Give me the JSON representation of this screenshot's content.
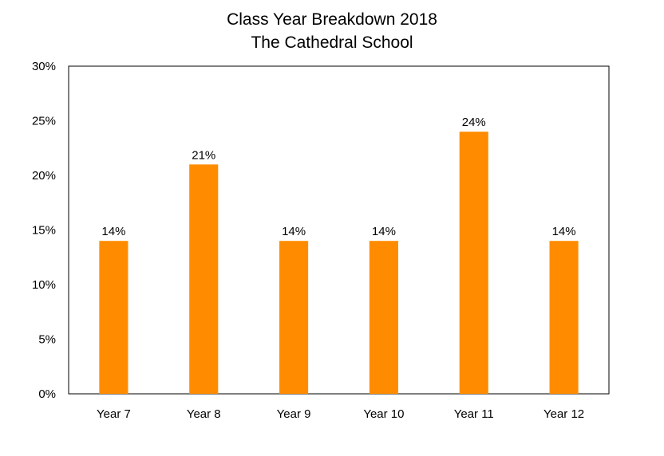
{
  "chart_data": {
    "type": "bar",
    "title": "Class Year Breakdown 2018",
    "subtitle": "The Cathedral School",
    "xlabel": "",
    "ylabel": "",
    "categories": [
      "Year 7",
      "Year 8",
      "Year 9",
      "Year 10",
      "Year 11",
      "Year 12"
    ],
    "values": [
      14,
      21,
      14,
      14,
      24,
      14
    ],
    "value_labels": [
      "14%",
      "21%",
      "14%",
      "14%",
      "24%",
      "14%"
    ],
    "value_format": "percent",
    "ylim": [
      0,
      30
    ],
    "yticks": [
      0,
      5,
      10,
      15,
      20,
      25,
      30
    ],
    "ytick_labels": [
      "0%",
      "5%",
      "10%",
      "15%",
      "20%",
      "25%",
      "30%"
    ],
    "grid": false,
    "legend": "none",
    "bar_color": "#FF8C00",
    "axis_color": "#000000"
  }
}
